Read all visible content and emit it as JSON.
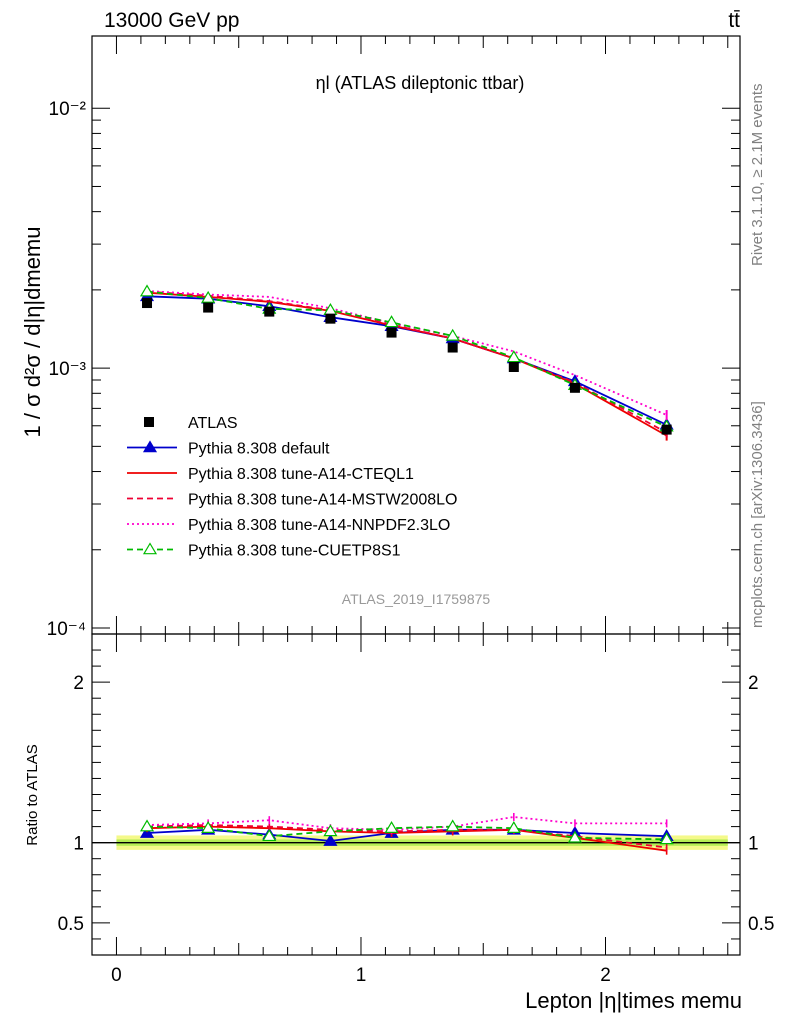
{
  "header": {
    "left": "13000 GeV pp",
    "right": "tt̄"
  },
  "side_labels": {
    "rivet": "Rivet 3.1.10, ≥ 2.1M events",
    "mcplots": "mcplots.cern.ch [arXiv:1306.3436]"
  },
  "chart_data": {
    "type": "line",
    "title": "ηl (ATLAS dileptonic ttbar)",
    "analysis_label": "ATLAS_2019_I1759875",
    "xlabel": "Lepton |η|times memu",
    "ylabel": "1 / σ  d²σ / d|η|dmemu",
    "ratio_ylabel": "Ratio to ATLAS",
    "xlim": [
      -0.1,
      2.55
    ],
    "ylim": [
      0.0001,
      0.02
    ],
    "yscale": "log",
    "ratio_ylim": [
      0.3,
      2.3
    ],
    "x_ticks": [
      "0",
      "1",
      "2"
    ],
    "y_ticks": [
      "10⁻⁴",
      "10⁻³",
      "10⁻²"
    ],
    "ratio_ticks": [
      "0.5",
      "1",
      "2"
    ],
    "legend_position": "lower-left",
    "x": [
      0.125,
      0.375,
      0.625,
      0.875,
      1.125,
      1.375,
      1.625,
      1.875,
      2.25
    ],
    "data": {
      "name": "ATLAS",
      "values": [
        0.00178,
        0.00171,
        0.00165,
        0.00155,
        0.00137,
        0.0012,
        0.00101,
        0.00084,
        0.00058
      ]
    },
    "series": [
      {
        "name": "Pythia 8.308 default",
        "color": "#0000cc",
        "style": "solid",
        "marker": "triangle-filled",
        "values": [
          0.00189,
          0.00185,
          0.00173,
          0.00157,
          0.00145,
          0.0013,
          0.00109,
          0.00089,
          0.000605
        ],
        "ratio": [
          1.06,
          1.08,
          1.05,
          1.01,
          1.06,
          1.08,
          1.08,
          1.06,
          1.04
        ]
      },
      {
        "name": "Pythia 8.308 tune-A14-CTEQL1",
        "color": "#ee0000",
        "style": "solid",
        "marker": "none",
        "values": [
          0.00195,
          0.00188,
          0.0018,
          0.00166,
          0.00146,
          0.0013,
          0.00109,
          0.00087,
          0.00055
        ],
        "ratio": [
          1.09,
          1.1,
          1.09,
          1.07,
          1.06,
          1.07,
          1.08,
          1.03,
          0.95
        ]
      },
      {
        "name": "Pythia 8.308 tune-A14-MSTW2008LO",
        "color": "#ee0033",
        "style": "dashed",
        "marker": "none",
        "values": [
          0.00197,
          0.0019,
          0.00181,
          0.00167,
          0.00147,
          0.0013,
          0.00109,
          0.00088,
          0.000565
        ],
        "ratio": [
          1.1,
          1.11,
          1.1,
          1.08,
          1.07,
          1.08,
          1.08,
          1.04,
          0.97
        ]
      },
      {
        "name": "Pythia 8.308 tune-A14-NNPDF2.3LO",
        "color": "#ff00cc",
        "style": "dotted",
        "marker": "none",
        "values": [
          0.00198,
          0.00192,
          0.00188,
          0.0017,
          0.00149,
          0.00133,
          0.00116,
          0.00094,
          0.00066
        ],
        "ratio": [
          1.11,
          1.12,
          1.14,
          1.09,
          1.08,
          1.1,
          1.16,
          1.12,
          1.12
        ]
      },
      {
        "name": "Pythia 8.308 tune-CUETP8S1",
        "color": "#00bb00",
        "style": "dashed",
        "marker": "triangle-open",
        "values": [
          0.00197,
          0.00186,
          0.00169,
          0.00167,
          0.0015,
          0.00133,
          0.0011,
          0.00086,
          0.000595
        ],
        "ratio": [
          1.1,
          1.09,
          1.04,
          1.07,
          1.09,
          1.1,
          1.09,
          1.03,
          1.02
        ]
      }
    ]
  }
}
